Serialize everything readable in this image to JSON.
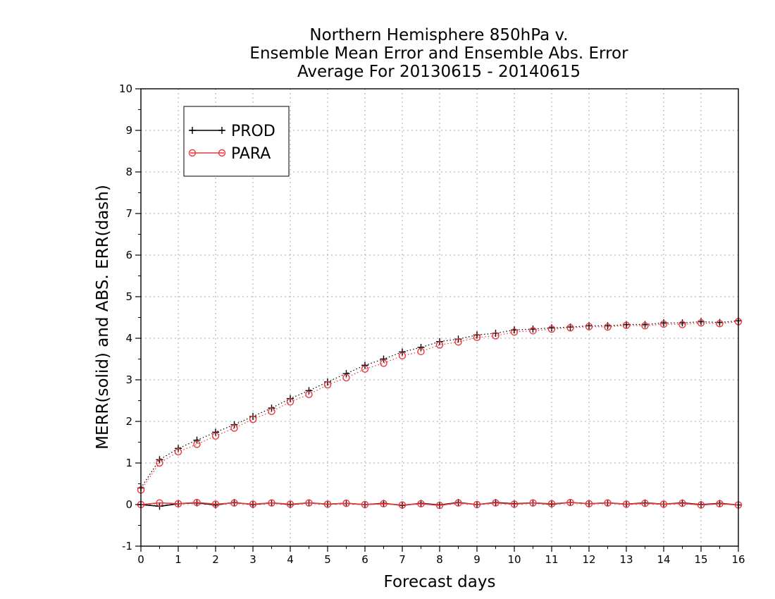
{
  "chart_data": {
    "type": "line",
    "title_lines": [
      "Northern Hemisphere 850hPa v.",
      "Ensemble Mean Error and Ensemble Abs. Error",
      "Average For 20130615 - 20140615"
    ],
    "xlabel": "Forecast days",
    "ylabel": "MERR(solid) and ABS. ERR(dash)",
    "xlim": [
      0,
      16
    ],
    "ylim": [
      -1,
      10
    ],
    "xticks": [
      0,
      1,
      2,
      3,
      4,
      5,
      6,
      7,
      8,
      9,
      10,
      11,
      12,
      13,
      14,
      15,
      16
    ],
    "yticks": [
      -1,
      0,
      1,
      2,
      3,
      4,
      5,
      6,
      7,
      8,
      9,
      10
    ],
    "grid": true,
    "legend_position": "top-left",
    "x": [
      0,
      0.5,
      1,
      1.5,
      2,
      2.5,
      3,
      3.5,
      4,
      4.5,
      5,
      5.5,
      6,
      6.5,
      7,
      7.5,
      8,
      8.5,
      9,
      9.5,
      10,
      10.5,
      11,
      11.5,
      12,
      12.5,
      13,
      13.5,
      14,
      14.5,
      15,
      15.5,
      16
    ],
    "series": [
      {
        "name": "PROD",
        "color": "#000000",
        "marker": "plus",
        "abs_err": [
          0.4,
          1.08,
          1.35,
          1.55,
          1.74,
          1.92,
          2.12,
          2.32,
          2.55,
          2.74,
          2.95,
          3.15,
          3.35,
          3.5,
          3.67,
          3.78,
          3.92,
          3.98,
          4.08,
          4.12,
          4.2,
          4.22,
          4.25,
          4.27,
          4.3,
          4.3,
          4.33,
          4.33,
          4.37,
          4.37,
          4.4,
          4.38,
          4.42
        ],
        "mean_err": [
          0.0,
          -0.04,
          0.02,
          0.04,
          -0.01,
          0.05,
          0.0,
          0.04,
          0.0,
          0.04,
          0.01,
          0.03,
          0.0,
          0.03,
          -0.02,
          0.03,
          -0.01,
          0.05,
          0.0,
          0.05,
          0.02,
          0.04,
          0.01,
          0.05,
          0.02,
          0.04,
          0.01,
          0.04,
          0.01,
          0.04,
          0.0,
          0.03,
          -0.01
        ]
      },
      {
        "name": "PARA",
        "color": "#e8383d",
        "marker": "circle",
        "abs_err": [
          0.35,
          1.0,
          1.27,
          1.45,
          1.65,
          1.84,
          2.05,
          2.24,
          2.47,
          2.65,
          2.88,
          3.05,
          3.26,
          3.4,
          3.58,
          3.68,
          3.84,
          3.91,
          4.02,
          4.06,
          4.15,
          4.18,
          4.22,
          4.25,
          4.28,
          4.27,
          4.31,
          4.3,
          4.34,
          4.33,
          4.37,
          4.35,
          4.4
        ],
        "mean_err": [
          0.0,
          0.04,
          0.02,
          0.05,
          0.01,
          0.04,
          0.01,
          0.04,
          0.01,
          0.04,
          0.01,
          0.03,
          0.0,
          0.02,
          -0.01,
          0.02,
          -0.02,
          0.04,
          0.0,
          0.04,
          0.01,
          0.04,
          0.02,
          0.05,
          0.02,
          0.04,
          0.01,
          0.03,
          0.01,
          0.03,
          -0.01,
          0.02,
          -0.01
        ]
      }
    ]
  }
}
